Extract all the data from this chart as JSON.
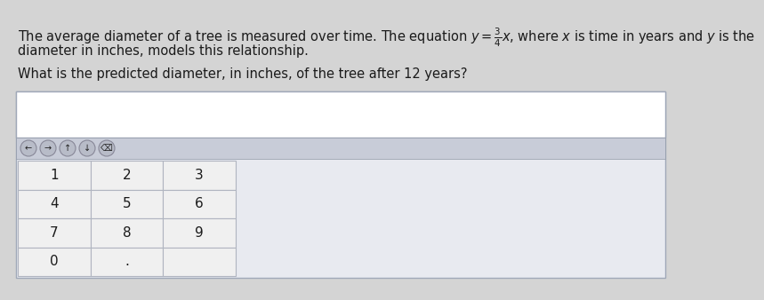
{
  "line1_plain": "The average diameter of a tree is measured over time. The equation ",
  "line1_math": "$y = \\frac{3}{4}x$, where $x$ is time in years and $y$ is the",
  "line2": "diameter in inches, models this relationship.",
  "question": "What is the predicted diameter, in inches, of the tree after 12 years?",
  "bg_color": "#d4d4d4",
  "panel_bg": "#e8eaf0",
  "panel_border": "#a0a8b8",
  "answer_bg": "#ffffff",
  "answer_border": "#a0a8b8",
  "arrow_row_bg": "#c8ccd8",
  "arrow_row_border": "#9098a8",
  "cell_bg": "#f0f0f0",
  "cell_border": "#b0b4c0",
  "keys": [
    [
      "1",
      "2",
      "3"
    ],
    [
      "4",
      "5",
      "6"
    ],
    [
      "7",
      "8",
      "9"
    ],
    [
      "0",
      ".",
      ""
    ]
  ],
  "arrow_symbols": [
    "←",
    "→",
    "↑",
    "↓",
    "⌫"
  ],
  "text_color": "#1a1a1a",
  "font_size_body": 10.5,
  "font_size_keys": 11
}
